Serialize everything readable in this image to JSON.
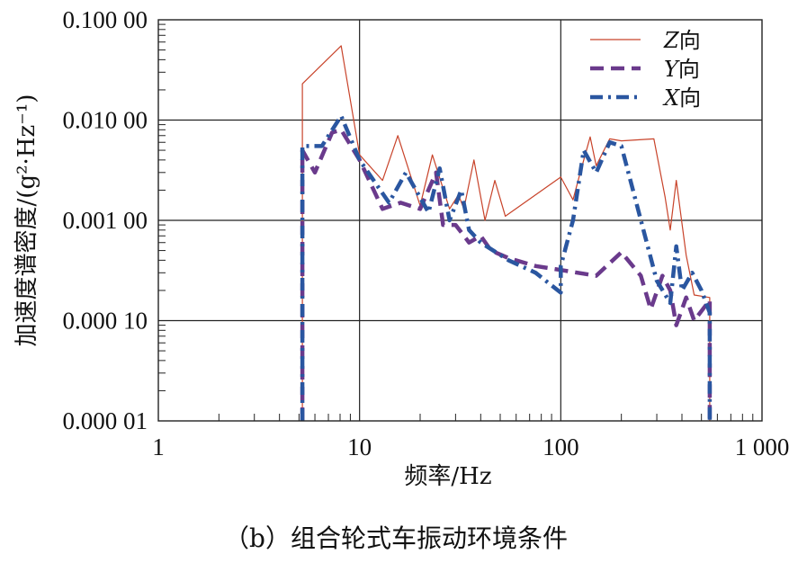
{
  "caption": "（b）组合轮式车振动环境条件",
  "chart_data": {
    "type": "line",
    "xlabel": "频率/Hz",
    "ylabel": "加速度谱密度/(g²·Hz⁻¹)",
    "x_scale": "log",
    "y_scale": "log",
    "xlim": [
      1,
      1000
    ],
    "ylim": [
      1e-05,
      0.1
    ],
    "grid": true,
    "legend_position": "top-right",
    "x_ticks": [
      {
        "value": 1,
        "label": "1"
      },
      {
        "value": 10,
        "label": "10"
      },
      {
        "value": 100,
        "label": "100"
      },
      {
        "value": 1000,
        "label": "1 000"
      }
    ],
    "y_ticks": [
      {
        "value": 0.1,
        "label": "0.100 00"
      },
      {
        "value": 0.01,
        "label": "0.010 00"
      },
      {
        "value": 0.001,
        "label": "0.001 00"
      },
      {
        "value": 0.0001,
        "label": "0.000 10"
      },
      {
        "value": 1e-05,
        "label": "0.000 01"
      }
    ],
    "series": [
      {
        "name": "Z",
        "label_suffix": "向",
        "color": "#c8432a",
        "style": "solid-thin",
        "x": [
          5.2,
          5.2,
          8.1,
          10,
          13,
          15.5,
          20,
          23,
          28,
          31,
          33,
          37,
          42,
          47,
          53,
          100,
          115,
          125,
          140,
          150,
          175,
          200,
          290,
          330,
          350,
          375,
          420,
          460,
          550,
          550
        ],
        "y": [
          1e-05,
          0.023,
          0.055,
          0.0045,
          0.0025,
          0.007,
          0.0014,
          0.0045,
          0.0013,
          0.0018,
          0.0013,
          0.004,
          0.001,
          0.0025,
          0.0011,
          0.0027,
          0.0016,
          0.003,
          0.0068,
          0.0035,
          0.0065,
          0.0062,
          0.0065,
          0.0017,
          0.0008,
          0.0025,
          0.00045,
          0.00018,
          0.00017,
          1e-05
        ]
      },
      {
        "name": "Y",
        "label_suffix": "向",
        "color": "#6a3a8c",
        "style": "dashed",
        "x": [
          5.2,
          5.2,
          6,
          7.3,
          8.1,
          10,
          13,
          16,
          20,
          24,
          26,
          30,
          35,
          40,
          45,
          55,
          75,
          100,
          150,
          200,
          250,
          280,
          320,
          350,
          375,
          420,
          460,
          550,
          550
        ],
        "y": [
          1e-05,
          0.005,
          0.003,
          0.0075,
          0.008,
          0.004,
          0.0013,
          0.0015,
          0.0013,
          0.003,
          0.0009,
          0.0009,
          0.0006,
          0.0007,
          0.0005,
          0.00042,
          0.00035,
          0.00032,
          0.00028,
          0.00048,
          0.00028,
          0.00013,
          0.00028,
          0.0002,
          9e-05,
          0.00017,
          0.0001,
          0.00016,
          1e-05
        ]
      },
      {
        "name": "X",
        "label_suffix": "向",
        "color": "#2a56a0",
        "style": "dash-dot",
        "x": [
          5.2,
          5.2,
          6.5,
          8.1,
          10,
          14,
          17,
          22,
          25,
          28,
          32,
          35,
          40,
          55,
          75,
          100,
          100,
          115,
          130,
          150,
          175,
          200,
          300,
          350,
          375,
          400,
          450,
          500,
          550,
          550
        ],
        "y": [
          1e-05,
          0.0055,
          0.0055,
          0.011,
          0.004,
          0.0015,
          0.003,
          0.0012,
          0.0033,
          0.001,
          0.002,
          0.0008,
          0.0006,
          0.0004,
          0.0003,
          0.00019,
          0.00035,
          0.001,
          0.005,
          0.003,
          0.006,
          0.0055,
          0.00025,
          0.00015,
          0.00055,
          0.0002,
          0.0003,
          0.0002,
          0.00012,
          1e-05
        ]
      }
    ]
  }
}
